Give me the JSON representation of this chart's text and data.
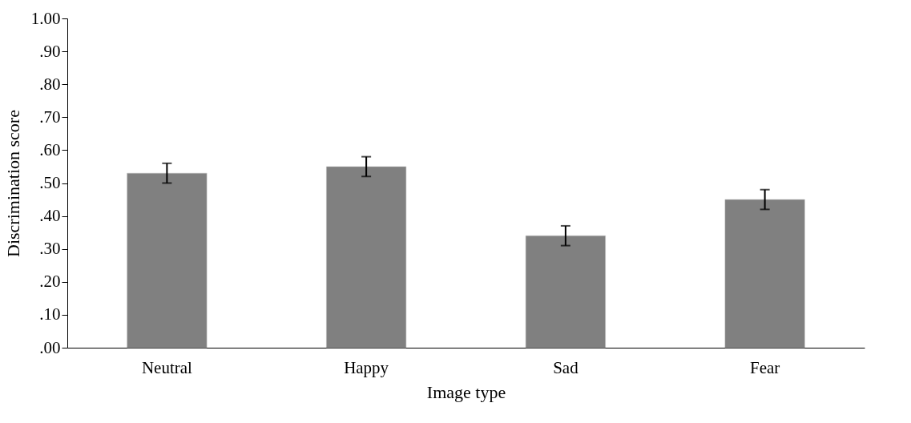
{
  "chart_data": {
    "type": "bar",
    "xlabel": "Image type",
    "ylabel": "Discrimination score",
    "categories": [
      "Neutral",
      "Happy",
      "Sad",
      "Fear"
    ],
    "values": [
      0.53,
      0.55,
      0.34,
      0.45
    ],
    "errors": [
      0.03,
      0.03,
      0.03,
      0.03
    ],
    "color": "#808080",
    "ylim": [
      0,
      1
    ],
    "yticks": [
      {
        "value": 0,
        "label": ".00"
      },
      {
        "value": 0.1,
        "label": ".10"
      },
      {
        "value": 0.2,
        "label": ".20"
      },
      {
        "value": 0.3,
        "label": ".30"
      },
      {
        "value": 0.4,
        "label": ".40"
      },
      {
        "value": 0.5,
        "label": ".50"
      },
      {
        "value": 0.6,
        "label": ".60"
      },
      {
        "value": 0.7,
        "label": ".70"
      },
      {
        "value": 0.8,
        "label": ".80"
      },
      {
        "value": 0.9,
        "label": ".90"
      },
      {
        "value": 1,
        "label": "1.00"
      }
    ],
    "grid": false
  }
}
